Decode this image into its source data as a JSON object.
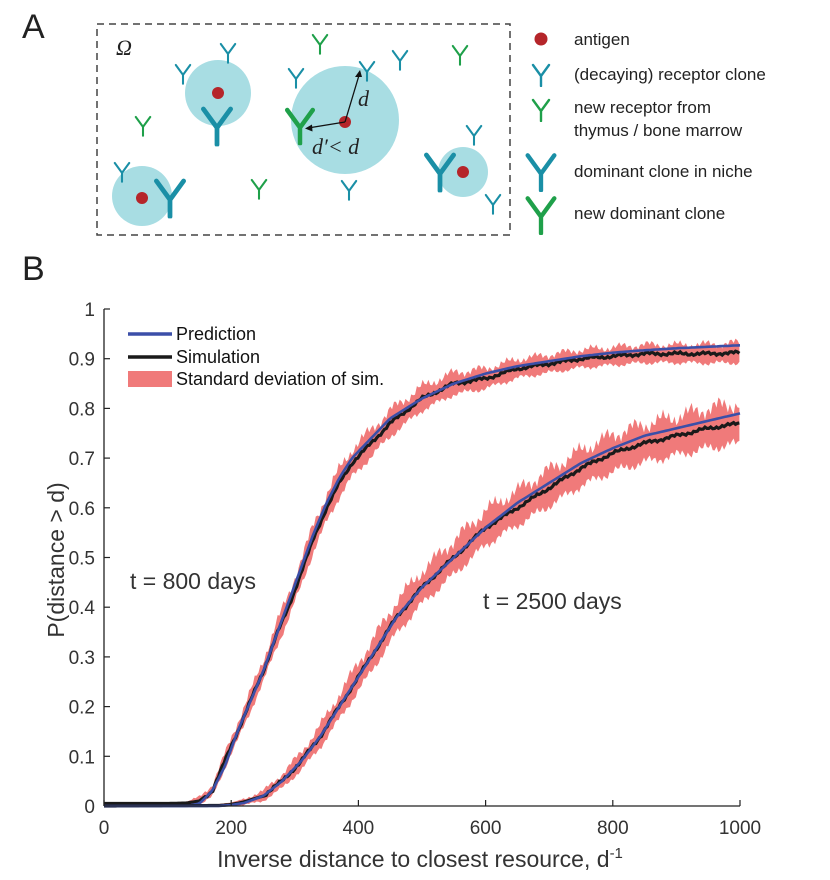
{
  "panel_a": {
    "label": "A",
    "omega": "Ω",
    "d_label": "d",
    "dprime_label": "d′< d",
    "legend": [
      {
        "label": "antigen",
        "icon": "antigen-dot"
      },
      {
        "label": "(decaying) receptor clone",
        "icon": "receptor-icon"
      },
      {
        "label": "new receptor from",
        "label2": "thymus / bone marrow",
        "icon": "new-receptor-icon"
      },
      {
        "label": "dominant clone in niche",
        "icon": "dominant-clone-icon"
      },
      {
        "label": "new dominant clone",
        "icon": "new-dominant-clone-icon"
      }
    ]
  },
  "panel_b": {
    "label": "B"
  },
  "colors": {
    "teal": "#1a8fa6",
    "green": "#1fa04a",
    "niche": "#a8dde3",
    "antigen": "#b5252a",
    "prediction": "#3b4fa8",
    "simulation": "#1a1a1a",
    "band": "#f07a7a"
  },
  "chart_data": {
    "type": "line",
    "title": "",
    "xlabel": "Inverse distance to closest resource, d",
    "xlabel_sup": "-1",
    "ylabel": "P(distance > d)",
    "xlim": [
      0,
      1000
    ],
    "ylim": [
      0,
      1
    ],
    "xticks": [
      0,
      200,
      400,
      600,
      800,
      1000
    ],
    "yticks": [
      0,
      0.1,
      0.2,
      0.3,
      0.4,
      0.5,
      0.6,
      0.7,
      0.8,
      0.9,
      1
    ],
    "ytick_labels": [
      "0",
      "0.1",
      "0.2",
      "0.3",
      "0.4",
      "0.5",
      "0.6",
      "0.7",
      "0.8",
      "0.9",
      "1"
    ],
    "legend": [
      "Prediction",
      "Simulation",
      "Standard deviation of sim."
    ],
    "x": [
      0,
      100,
      130,
      150,
      170,
      190,
      210,
      230,
      250,
      270,
      290,
      310,
      330,
      350,
      370,
      390,
      420,
      450,
      500,
      550,
      600,
      650,
      700,
      750,
      800,
      850,
      900,
      950,
      1000
    ],
    "series": [
      {
        "name": "t = 800 days",
        "annotation": "t = 800 days",
        "prediction": [
          0,
          0,
          0,
          0.005,
          0.03,
          0.08,
          0.15,
          0.21,
          0.27,
          0.34,
          0.41,
          0.48,
          0.55,
          0.61,
          0.66,
          0.7,
          0.74,
          0.78,
          0.82,
          0.85,
          0.87,
          0.885,
          0.895,
          0.905,
          0.912,
          0.917,
          0.921,
          0.924,
          0.927
        ],
        "simulation": [
          0.005,
          0.005,
          0.006,
          0.01,
          0.03,
          0.09,
          0.15,
          0.21,
          0.27,
          0.34,
          0.4,
          0.47,
          0.54,
          0.6,
          0.65,
          0.69,
          0.73,
          0.77,
          0.82,
          0.85,
          0.86,
          0.88,
          0.89,
          0.9,
          0.905,
          0.91,
          0.91,
          0.91,
          0.912
        ],
        "std": [
          0.002,
          0.002,
          0.003,
          0.008,
          0.012,
          0.015,
          0.018,
          0.02,
          0.022,
          0.024,
          0.025,
          0.026,
          0.027,
          0.028,
          0.028,
          0.028,
          0.027,
          0.026,
          0.024,
          0.022,
          0.02,
          0.019,
          0.018,
          0.018,
          0.018,
          0.018,
          0.018,
          0.019,
          0.02
        ]
      },
      {
        "name": "t = 2500 days",
        "annotation": "t = 2500 days",
        "x": [
          0,
          180,
          200,
          220,
          250,
          280,
          310,
          340,
          370,
          400,
          430,
          460,
          500,
          550,
          600,
          650,
          700,
          750,
          800,
          850,
          900,
          950,
          1000
        ],
        "prediction": [
          0,
          0,
          0.002,
          0.006,
          0.02,
          0.05,
          0.09,
          0.14,
          0.2,
          0.26,
          0.32,
          0.38,
          0.44,
          0.5,
          0.56,
          0.61,
          0.65,
          0.69,
          0.72,
          0.745,
          0.76,
          0.775,
          0.79
        ],
        "simulation": [
          0,
          0.001,
          0.003,
          0.008,
          0.02,
          0.05,
          0.09,
          0.14,
          0.2,
          0.26,
          0.32,
          0.38,
          0.44,
          0.5,
          0.56,
          0.6,
          0.64,
          0.68,
          0.71,
          0.73,
          0.745,
          0.76,
          0.77
        ],
        "std": [
          0.002,
          0.003,
          0.004,
          0.006,
          0.01,
          0.014,
          0.018,
          0.022,
          0.025,
          0.028,
          0.03,
          0.032,
          0.033,
          0.034,
          0.035,
          0.035,
          0.036,
          0.036,
          0.037,
          0.038,
          0.039,
          0.04,
          0.041
        ]
      }
    ]
  }
}
